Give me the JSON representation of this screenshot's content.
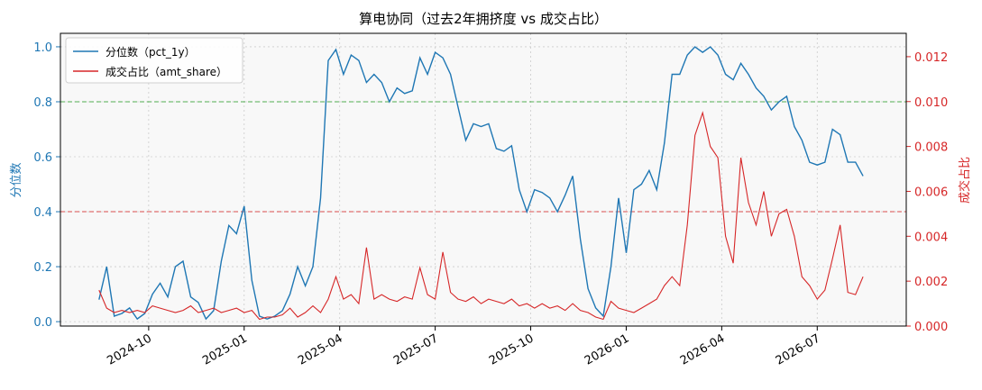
{
  "chart_data": {
    "type": "line",
    "title": "算电协同（过去2年拥挤度 vs 成交占比）",
    "ylabel": "分位数",
    "y2label": "成交占比",
    "legend": "upper left",
    "grid": true,
    "xlim": [
      2024.519,
      2026.733
    ],
    "xticks": [
      {
        "value": 2024.75,
        "label": "2024-10"
      },
      {
        "value": 2025.0,
        "label": "2025-01"
      },
      {
        "value": 2025.25,
        "label": "2025-04"
      },
      {
        "value": 2025.5,
        "label": "2025-07"
      },
      {
        "value": 2025.75,
        "label": "2025-10"
      },
      {
        "value": 2026.0,
        "label": "2026-01"
      },
      {
        "value": 2026.25,
        "label": "2026-04"
      },
      {
        "value": 2026.5,
        "label": "2026-07"
      }
    ],
    "ylim": [
      -0.016,
      1.049
    ],
    "yticks": [
      {
        "value": 0,
        "label": "0.0"
      },
      0.2,
      0.4,
      0.6,
      0.8,
      {
        "value": 1,
        "label": "1.0"
      }
    ],
    "y2lim": [
      0,
      0.01304
    ],
    "y2ticks": [
      {
        "value": 0,
        "label": "0.000"
      },
      {
        "value": 0.002,
        "label": "0.002"
      },
      {
        "value": 0.004,
        "label": "0.004"
      },
      {
        "value": 0.006,
        "label": "0.006"
      },
      {
        "value": 0.008,
        "label": "0.008"
      },
      {
        "value": 0.01,
        "label": "0.010"
      },
      {
        "value": 0.012,
        "label": "0.012"
      }
    ],
    "hlines": [
      {
        "value": 0.8,
        "color": "#2ca02c"
      },
      {
        "value": 0.4,
        "color": "#d62728"
      }
    ],
    "x": [
      2024.62,
      2024.64,
      2024.66,
      2024.68,
      2024.7,
      2024.72,
      2024.74,
      2024.76,
      2024.78,
      2024.8,
      2024.82,
      2024.84,
      2024.86,
      2024.88,
      2024.9,
      2024.92,
      2024.94,
      2024.96,
      2024.98,
      2025.0,
      2025.02,
      2025.04,
      2025.06,
      2025.08,
      2025.1,
      2025.12,
      2025.14,
      2025.16,
      2025.18,
      2025.2,
      2025.22,
      2025.24,
      2025.26,
      2025.28,
      2025.3,
      2025.32,
      2025.34,
      2025.36,
      2025.38,
      2025.4,
      2025.42,
      2025.44,
      2025.46,
      2025.48,
      2025.5,
      2025.52,
      2025.54,
      2025.56,
      2025.58,
      2025.6,
      2025.62,
      2025.64,
      2025.66,
      2025.68,
      2025.7,
      2025.72,
      2025.74,
      2025.76,
      2025.78,
      2025.8,
      2025.82,
      2025.84,
      2025.86,
      2025.88,
      2025.9,
      2025.92,
      2025.94,
      2025.96,
      2025.98,
      2026.0,
      2026.02,
      2026.04,
      2026.06,
      2026.08,
      2026.1,
      2026.12,
      2026.14,
      2026.16,
      2026.18,
      2026.2,
      2026.22,
      2026.24,
      2026.26,
      2026.28,
      2026.3,
      2026.32,
      2026.34,
      2026.36,
      2026.38,
      2026.4,
      2026.42,
      2026.44,
      2026.46,
      2026.48,
      2026.5,
      2026.52,
      2026.54,
      2026.56,
      2026.58,
      2026.6,
      2026.62
    ],
    "series": [
      {
        "name": "分位数（pct_1y）",
        "color": "#1f77b4",
        "axis": "y",
        "values": [
          0.08,
          0.2,
          0.02,
          0.03,
          0.05,
          0.01,
          0.03,
          0.1,
          0.14,
          0.09,
          0.2,
          0.22,
          0.09,
          0.07,
          0.01,
          0.04,
          0.22,
          0.35,
          0.32,
          0.42,
          0.15,
          0.02,
          0.01,
          0.02,
          0.04,
          0.1,
          0.2,
          0.13,
          0.2,
          0.45,
          0.95,
          0.99,
          0.9,
          0.97,
          0.95,
          0.87,
          0.9,
          0.87,
          0.8,
          0.85,
          0.83,
          0.84,
          0.96,
          0.9,
          0.98,
          0.96,
          0.9,
          0.78,
          0.66,
          0.72,
          0.71,
          0.72,
          0.63,
          0.62,
          0.64,
          0.48,
          0.4,
          0.48,
          0.47,
          0.45,
          0.4,
          0.46,
          0.53,
          0.3,
          0.12,
          0.05,
          0.02,
          0.2,
          0.45,
          0.25,
          0.48,
          0.5,
          0.55,
          0.48,
          0.65,
          0.9,
          0.9,
          0.97,
          1.0,
          0.98,
          1.0,
          0.97,
          0.9,
          0.88,
          0.94,
          0.9,
          0.85,
          0.82,
          0.77,
          0.8,
          0.82,
          0.71,
          0.66,
          0.58,
          0.57,
          0.58,
          0.7,
          0.68,
          0.58,
          0.58,
          0.53
        ]
      },
      {
        "name": "成交占比（amt_share）",
        "color": "#d62728",
        "axis": "y2",
        "values": [
          0.0016,
          0.0008,
          0.0006,
          0.0007,
          0.0006,
          0.0007,
          0.0006,
          0.0009,
          0.0008,
          0.0007,
          0.0006,
          0.0007,
          0.0009,
          0.0006,
          0.0007,
          0.0008,
          0.0006,
          0.0007,
          0.0008,
          0.0006,
          0.0007,
          0.0003,
          0.0004,
          0.0004,
          0.0005,
          0.0008,
          0.0004,
          0.0006,
          0.0009,
          0.0006,
          0.0012,
          0.0022,
          0.0012,
          0.0014,
          0.001,
          0.0035,
          0.0012,
          0.0014,
          0.0012,
          0.0011,
          0.0013,
          0.0012,
          0.0026,
          0.0014,
          0.0012,
          0.0033,
          0.0015,
          0.0012,
          0.0011,
          0.0013,
          0.001,
          0.0012,
          0.0011,
          0.001,
          0.0012,
          0.0009,
          0.001,
          0.0008,
          0.001,
          0.0008,
          0.0009,
          0.0007,
          0.001,
          0.0007,
          0.0006,
          0.0004,
          0.0003,
          0.0011,
          0.0008,
          0.0007,
          0.0006,
          0.0008,
          0.001,
          0.0012,
          0.0018,
          0.0022,
          0.0018,
          0.0045,
          0.0085,
          0.0095,
          0.008,
          0.0075,
          0.004,
          0.0028,
          0.0075,
          0.0055,
          0.0045,
          0.006,
          0.004,
          0.005,
          0.0052,
          0.004,
          0.0022,
          0.0018,
          0.0012,
          0.0016,
          0.003,
          0.0045,
          0.0015,
          0.0014,
          0.0022
        ]
      }
    ]
  }
}
